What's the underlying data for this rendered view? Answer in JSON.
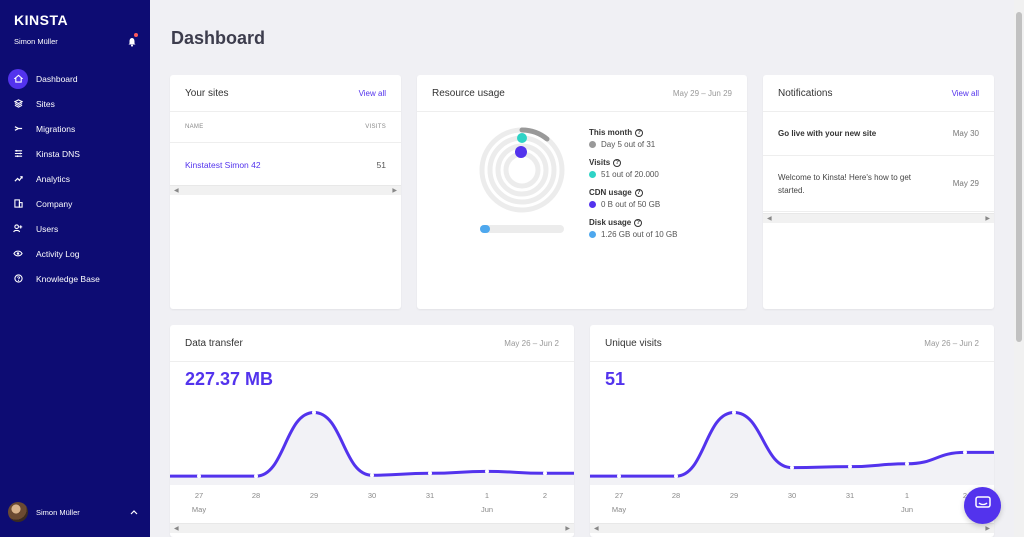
{
  "sidebar": {
    "logo": "KINSTA",
    "user_name": "Simon Müller",
    "items": [
      {
        "label": "Dashboard",
        "icon": "home-icon"
      },
      {
        "label": "Sites",
        "icon": "layers-icon"
      },
      {
        "label": "Migrations",
        "icon": "migrate-icon"
      },
      {
        "label": "Kinsta DNS",
        "icon": "dns-icon"
      },
      {
        "label": "Analytics",
        "icon": "analytics-icon"
      },
      {
        "label": "Company",
        "icon": "company-icon"
      },
      {
        "label": "Users",
        "icon": "add-user-icon"
      },
      {
        "label": "Activity Log",
        "icon": "eye-icon"
      },
      {
        "label": "Knowledge Base",
        "icon": "help-icon"
      }
    ],
    "footer_name": "Simon Müller"
  },
  "page": {
    "title": "Dashboard"
  },
  "your_sites": {
    "title": "Your sites",
    "view_all": "View all",
    "col_name": "NAME",
    "col_visits": "VISITS",
    "rows": [
      {
        "name": "Kinstatest Simon 42",
        "visits": "51"
      }
    ]
  },
  "resource_usage": {
    "title": "Resource usage",
    "date_range": "May 29 – Jun 29",
    "this_month_label": "This month",
    "this_month_value": "Day 5 out of 31",
    "visits_label": "Visits",
    "visits_value": "51 out of 20.000",
    "cdn_label": "CDN usage",
    "cdn_value": "0 B out of 50 GB",
    "disk_label": "Disk usage",
    "disk_value": "1.26 GB out of 10 GB",
    "colors": {
      "month": "#999999",
      "visits": "#2ed3c6",
      "cdn": "#5333ed",
      "disk": "#4ea8ee"
    }
  },
  "notifications": {
    "title": "Notifications",
    "view_all": "View all",
    "items": [
      {
        "text": "Go live with your new site",
        "date": "May 30"
      },
      {
        "text": "Welcome to Kinsta! Here's how to get started.",
        "date": "May 29"
      }
    ]
  },
  "data_transfer": {
    "title": "Data transfer",
    "date_range": "May 26 – Jun 2",
    "value": "227.37 MB",
    "x_labels": [
      "27",
      "28",
      "29",
      "30",
      "31",
      "1",
      "2"
    ],
    "month_labels": [
      "May",
      "Jun"
    ]
  },
  "unique_visits": {
    "title": "Unique visits",
    "date_range": "May 26 – Jun 2",
    "value": "51",
    "x_labels": [
      "27",
      "28",
      "29",
      "30",
      "31",
      "1",
      "2"
    ],
    "month_labels": [
      "May",
      "Jun"
    ]
  },
  "chart_data": [
    {
      "type": "area",
      "x": [
        "27",
        "28",
        "29",
        "30",
        "31",
        "1",
        "2"
      ],
      "series": [
        {
          "values": [
            3,
            3,
            70,
            4,
            6,
            8,
            6
          ]
        }
      ],
      "ylim": [
        0,
        80
      ]
    },
    {
      "type": "area",
      "x": [
        "27",
        "28",
        "29",
        "30",
        "31",
        "1",
        "2"
      ],
      "series": [
        {
          "values": [
            3,
            3,
            70,
            12,
            13,
            16,
            28
          ]
        }
      ],
      "ylim": [
        0,
        80
      ]
    }
  ]
}
